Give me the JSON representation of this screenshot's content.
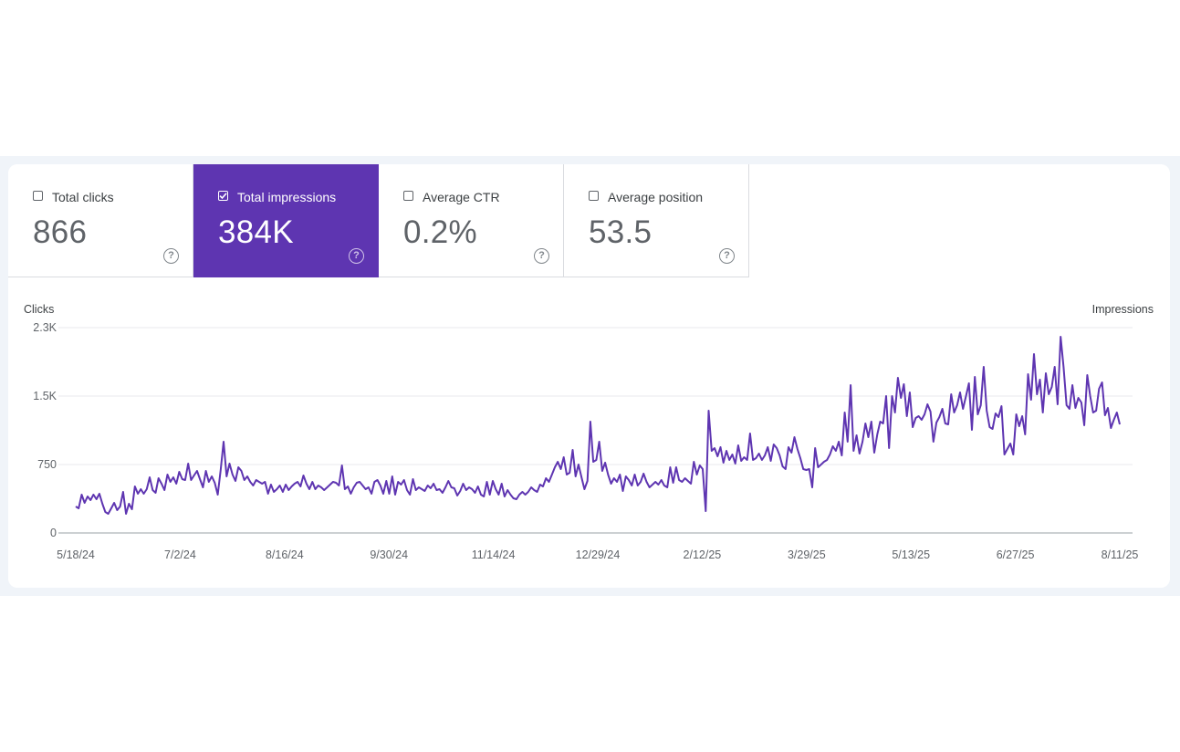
{
  "metrics": [
    {
      "label": "Total clicks",
      "value": "866",
      "checked": false
    },
    {
      "label": "Total impressions",
      "value": "384K",
      "checked": true
    },
    {
      "label": "Average CTR",
      "value": "0.2%",
      "checked": false
    },
    {
      "label": "Average position",
      "value": "53.5",
      "checked": false
    }
  ],
  "icons": {
    "help": "help-circle-icon",
    "checkbox": "checkbox-icon"
  },
  "help_glyph": "?",
  "colors": {
    "accent": "#5e35b1",
    "line": "#5e35b1",
    "background": "#f0f4f9"
  },
  "chart_data": {
    "type": "line",
    "left_axis_label": "Clicks",
    "right_axis_label": "Impressions",
    "y_ticks": [
      {
        "value": 0,
        "label": "0"
      },
      {
        "value": 750,
        "label": "750"
      },
      {
        "value": 1500,
        "label": "1.5K"
      },
      {
        "value": 2250,
        "label": "2.3K"
      }
    ],
    "ylim": [
      0,
      2250
    ],
    "x_ticks": [
      "5/18/24",
      "7/2/24",
      "8/16/24",
      "9/30/24",
      "11/14/24",
      "12/29/24",
      "2/12/25",
      "3/29/25",
      "5/13/25",
      "6/27/25",
      "8/11/25"
    ],
    "x_start": "2024-05-18",
    "x_end": "2025-08-13",
    "grid": true,
    "series": [
      {
        "name": "Total impressions",
        "color": "#5e35b1",
        "values": [
          290,
          270,
          420,
          330,
          400,
          360,
          420,
          370,
          430,
          320,
          230,
          210,
          270,
          330,
          250,
          290,
          450,
          210,
          320,
          260,
          510,
          430,
          480,
          430,
          480,
          610,
          470,
          440,
          600,
          540,
          470,
          640,
          560,
          610,
          540,
          670,
          590,
          580,
          760,
          580,
          630,
          680,
          590,
          500,
          680,
          560,
          620,
          550,
          420,
          690,
          1000,
          620,
          760,
          640,
          570,
          720,
          680,
          580,
          620,
          560,
          520,
          580,
          560,
          540,
          560,
          430,
          530,
          450,
          480,
          520,
          450,
          530,
          470,
          510,
          540,
          560,
          510,
          630,
          540,
          480,
          560,
          480,
          520,
          500,
          470,
          500,
          530,
          560,
          550,
          520,
          740,
          480,
          510,
          430,
          500,
          550,
          560,
          520,
          480,
          500,
          430,
          560,
          580,
          520,
          430,
          570,
          430,
          620,
          420,
          560,
          530,
          580,
          470,
          420,
          590,
          470,
          500,
          480,
          460,
          520,
          490,
          540,
          470,
          480,
          440,
          500,
          570,
          500,
          490,
          410,
          460,
          540,
          470,
          500,
          480,
          440,
          510,
          420,
          400,
          560,
          420,
          570,
          480,
          420,
          540,
          400,
          470,
          420,
          380,
          370,
          420,
          450,
          420,
          450,
          500,
          470,
          450,
          530,
          510,
          600,
          560,
          640,
          720,
          780,
          700,
          830,
          640,
          660,
          910,
          620,
          750,
          610,
          480,
          570,
          1220,
          780,
          800,
          1000,
          680,
          770,
          640,
          540,
          600,
          560,
          640,
          460,
          620,
          580,
          520,
          640,
          520,
          560,
          650,
          560,
          500,
          530,
          560,
          530,
          580,
          520,
          500,
          720,
          550,
          720,
          580,
          560,
          600,
          570,
          540,
          780,
          640,
          740,
          700,
          240,
          1340,
          900,
          930,
          840,
          940,
          770,
          900,
          800,
          860,
          760,
          960,
          790,
          830,
          800,
          1090,
          800,
          820,
          870,
          800,
          850,
          940,
          790,
          970,
          930,
          850,
          730,
          700,
          940,
          880,
          1050,
          920,
          820,
          700,
          690,
          700,
          500,
          930,
          720,
          750,
          780,
          800,
          860,
          950,
          900,
          1000,
          850,
          1320,
          1000,
          1620,
          900,
          1070,
          870,
          1000,
          1200,
          1050,
          1220,
          880,
          1080,
          1220,
          1200,
          1500,
          930,
          1500,
          1320,
          1700,
          1480,
          1630,
          1280,
          1540,
          1160,
          1260,
          1280,
          1240,
          1300,
          1410,
          1330,
          1000,
          1210,
          1270,
          1360,
          1200,
          1190,
          1520,
          1320,
          1400,
          1540,
          1360,
          1500,
          1640,
          1130,
          1710,
          1300,
          1400,
          1820,
          1340,
          1160,
          1140,
          1310,
          1270,
          1390,
          860,
          920,
          980,
          860,
          1300,
          1170,
          1280,
          1080,
          1740,
          1460,
          1960,
          1520,
          1680,
          1320,
          1750,
          1520,
          1600,
          1820,
          1410,
          2150,
          1820,
          1400,
          1360,
          1620,
          1370,
          1480,
          1430,
          1180,
          1730,
          1500,
          1320,
          1340,
          1580,
          1650,
          1290,
          1370,
          1150,
          1240,
          1320,
          1190
        ]
      }
    ]
  }
}
